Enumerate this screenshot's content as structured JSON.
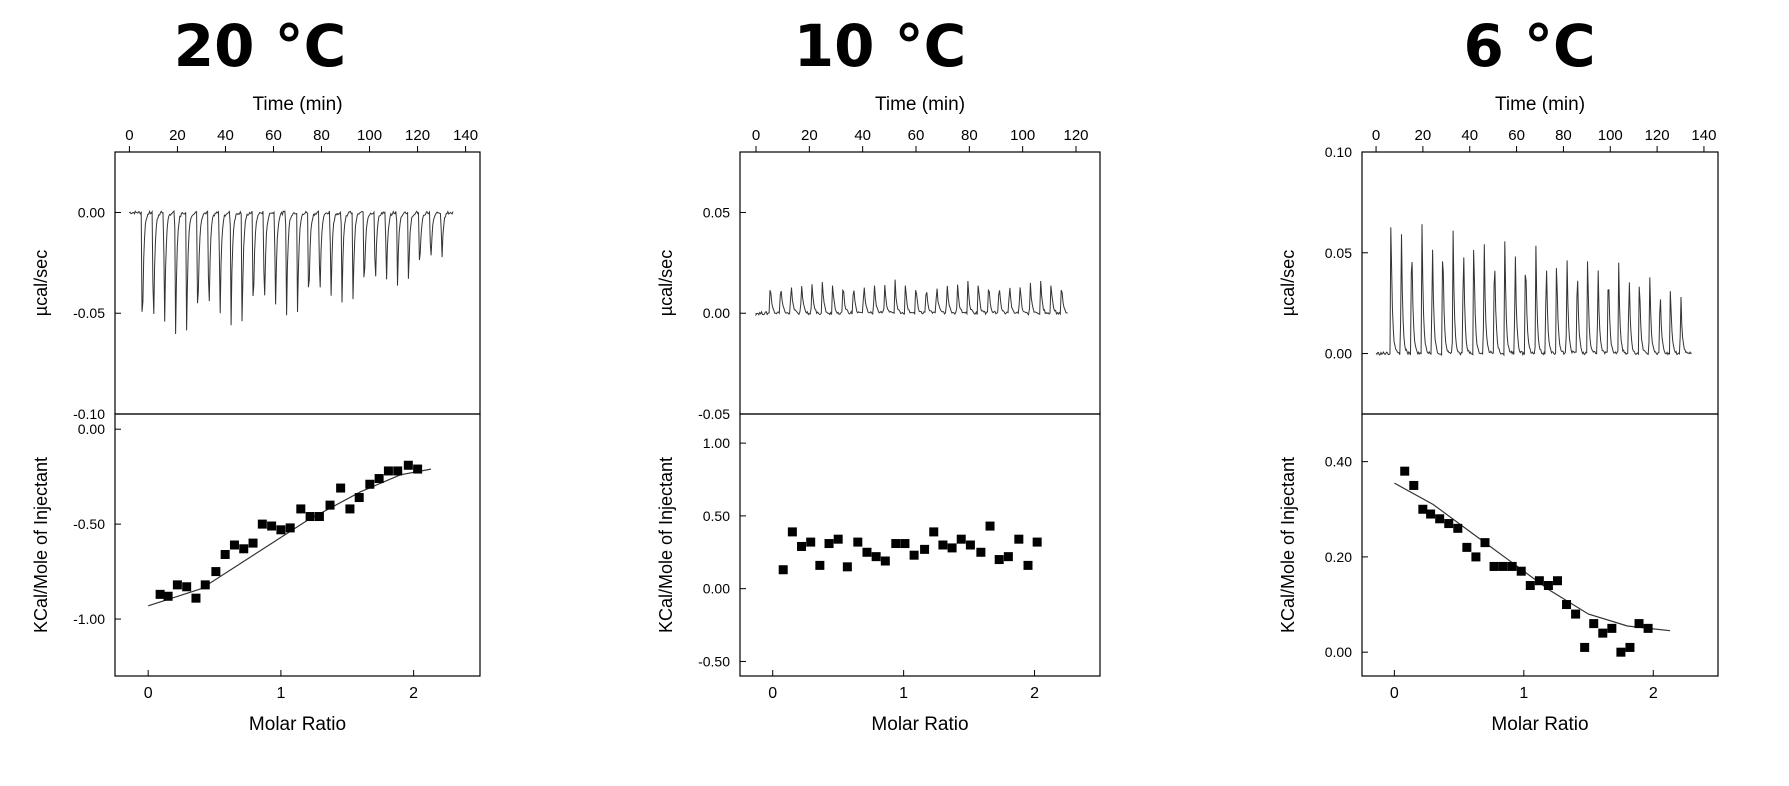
{
  "chart_data": [
    {
      "type": "scatter",
      "title": "20 °C",
      "top": {
        "xlabel": "Time (min)",
        "ylabel": "µcal/sec",
        "xlim": [
          -6,
          146
        ],
        "ylim": [
          -0.1,
          0.03
        ],
        "xticks": [
          0,
          20,
          40,
          60,
          80,
          100,
          120,
          140
        ],
        "yticks": [
          -0.1,
          -0.05,
          0.0
        ],
        "ytick_labels": [
          "-0.10",
          "-0.05",
          "0.00"
        ],
        "baseline": 0.0,
        "trace_end": 135,
        "injection_start": 5,
        "injection_interval": 4.62,
        "peaks": [
          -0.069,
          -0.069,
          -0.066,
          -0.065,
          -0.064,
          -0.063,
          -0.062,
          -0.061,
          -0.06,
          -0.059,
          -0.058,
          -0.057,
          -0.056,
          -0.055,
          -0.054,
          -0.052,
          -0.051,
          -0.05,
          -0.048,
          -0.047,
          -0.045,
          -0.043,
          -0.041,
          -0.039,
          -0.036,
          -0.033,
          -0.03,
          -0.027
        ]
      },
      "bottom": {
        "xlabel": "Molar Ratio",
        "ylabel": "KCal/Mole of Injectant",
        "xlim": [
          -0.25,
          2.5
        ],
        "ylim": [
          -1.3,
          0.08
        ],
        "xticks": [
          0,
          1,
          2
        ],
        "yticks": [
          -1.0,
          -0.5,
          0.0
        ],
        "ytick_labels": [
          "-1.00",
          "-0.50",
          "0.00"
        ],
        "points": [
          [
            0.09,
            -0.87
          ],
          [
            0.15,
            -0.88
          ],
          [
            0.22,
            -0.82
          ],
          [
            0.29,
            -0.83
          ],
          [
            0.36,
            -0.89
          ],
          [
            0.43,
            -0.82
          ],
          [
            0.51,
            -0.75
          ],
          [
            0.58,
            -0.66
          ],
          [
            0.65,
            -0.61
          ],
          [
            0.72,
            -0.63
          ],
          [
            0.79,
            -0.6
          ],
          [
            0.86,
            -0.5
          ],
          [
            0.93,
            -0.51
          ],
          [
            1.0,
            -0.53
          ],
          [
            1.07,
            -0.52
          ],
          [
            1.15,
            -0.42
          ],
          [
            1.22,
            -0.46
          ],
          [
            1.29,
            -0.46
          ],
          [
            1.37,
            -0.4
          ],
          [
            1.45,
            -0.31
          ],
          [
            1.52,
            -0.42
          ],
          [
            1.59,
            -0.36
          ],
          [
            1.67,
            -0.29
          ],
          [
            1.74,
            -0.26
          ],
          [
            1.81,
            -0.22
          ],
          [
            1.88,
            -0.22
          ],
          [
            1.96,
            -0.19
          ],
          [
            2.03,
            -0.21
          ]
        ],
        "fit": [
          [
            0.0,
            -0.93
          ],
          [
            0.4,
            -0.84
          ],
          [
            0.8,
            -0.66
          ],
          [
            1.2,
            -0.48
          ],
          [
            1.6,
            -0.33
          ],
          [
            1.9,
            -0.24
          ],
          [
            2.13,
            -0.21
          ]
        ]
      }
    },
    {
      "type": "scatter",
      "title": "10 °C",
      "top": {
        "xlabel": "Time (min)",
        "ylabel": "µcal/sec",
        "xlim": [
          -6,
          129
        ],
        "ylim": [
          -0.05,
          0.08
        ],
        "xticks": [
          0,
          20,
          40,
          60,
          80,
          100,
          120
        ],
        "yticks": [
          -0.05,
          0.0,
          0.05
        ],
        "ytick_labels": [
          "-0.05",
          "0.00",
          "0.05"
        ],
        "baseline": 0.0,
        "trace_end": 117,
        "injection_start": 5,
        "injection_interval": 3.9,
        "peaks": [
          0.016,
          0.016,
          0.016,
          0.016,
          0.016,
          0.016,
          0.016,
          0.016,
          0.016,
          0.016,
          0.016,
          0.016,
          0.016,
          0.016,
          0.016,
          0.016,
          0.016,
          0.016,
          0.016,
          0.016,
          0.016,
          0.016,
          0.016,
          0.016,
          0.016,
          0.016,
          0.016,
          0.016,
          0.016
        ]
      },
      "bottom": {
        "xlabel": "Molar Ratio",
        "ylabel": "KCal/Mole of Injectant",
        "xlim": [
          -0.25,
          2.5
        ],
        "ylim": [
          -0.6,
          1.2
        ],
        "xticks": [
          0,
          1,
          2
        ],
        "yticks": [
          -0.5,
          0.0,
          0.5,
          1.0
        ],
        "ytick_labels": [
          "-0.50",
          "0.00",
          "0.50",
          "1.00"
        ],
        "points": [
          [
            0.08,
            0.13
          ],
          [
            0.15,
            0.39
          ],
          [
            0.22,
            0.29
          ],
          [
            0.29,
            0.32
          ],
          [
            0.36,
            0.16
          ],
          [
            0.43,
            0.31
          ],
          [
            0.5,
            0.34
          ],
          [
            0.57,
            0.15
          ],
          [
            0.65,
            0.32
          ],
          [
            0.72,
            0.25
          ],
          [
            0.79,
            0.22
          ],
          [
            0.86,
            0.19
          ],
          [
            0.94,
            0.31
          ],
          [
            1.01,
            0.31
          ],
          [
            1.08,
            0.23
          ],
          [
            1.16,
            0.27
          ],
          [
            1.23,
            0.39
          ],
          [
            1.3,
            0.3
          ],
          [
            1.37,
            0.28
          ],
          [
            1.44,
            0.34
          ],
          [
            1.51,
            0.3
          ],
          [
            1.59,
            0.25
          ],
          [
            1.66,
            0.43
          ],
          [
            1.73,
            0.2
          ],
          [
            1.8,
            0.22
          ],
          [
            1.88,
            0.34
          ],
          [
            1.95,
            0.16
          ],
          [
            2.02,
            0.32
          ]
        ],
        "fit": []
      }
    },
    {
      "type": "scatter",
      "title": "6 °C",
      "top": {
        "xlabel": "Time (min)",
        "ylabel": "µcal/sec",
        "xlim": [
          -6,
          146
        ],
        "ylim": [
          -0.03,
          0.1
        ],
        "xticks": [
          0,
          20,
          40,
          60,
          80,
          100,
          120,
          140
        ],
        "yticks": [
          0.0,
          0.05,
          0.1
        ],
        "ytick_labels": [
          "0.00",
          "0.05",
          "0.10"
        ],
        "baseline": 0.0,
        "trace_end": 135,
        "injection_start": 6,
        "injection_interval": 4.42,
        "peaks": [
          0.073,
          0.068,
          0.067,
          0.066,
          0.065,
          0.064,
          0.064,
          0.063,
          0.062,
          0.061,
          0.06,
          0.059,
          0.058,
          0.057,
          0.056,
          0.055,
          0.053,
          0.052,
          0.051,
          0.05,
          0.049,
          0.048,
          0.046,
          0.045,
          0.043,
          0.041,
          0.038,
          0.035,
          0.033
        ]
      },
      "bottom": {
        "xlabel": "Molar Ratio",
        "ylabel": "KCal/Mole of Injectant",
        "xlim": [
          -0.25,
          2.5
        ],
        "ylim": [
          -0.05,
          0.5
        ],
        "xticks": [
          0,
          1,
          2
        ],
        "yticks": [
          0.0,
          0.2,
          0.4
        ],
        "ytick_labels": [
          "0.00",
          "0.20",
          "0.40"
        ],
        "points": [
          [
            0.08,
            0.38
          ],
          [
            0.15,
            0.35
          ],
          [
            0.22,
            0.3
          ],
          [
            0.28,
            0.29
          ],
          [
            0.35,
            0.28
          ],
          [
            0.42,
            0.27
          ],
          [
            0.49,
            0.26
          ],
          [
            0.56,
            0.22
          ],
          [
            0.63,
            0.2
          ],
          [
            0.7,
            0.23
          ],
          [
            0.77,
            0.18
          ],
          [
            0.84,
            0.18
          ],
          [
            0.91,
            0.18
          ],
          [
            0.98,
            0.17
          ],
          [
            1.05,
            0.14
          ],
          [
            1.12,
            0.15
          ],
          [
            1.19,
            0.14
          ],
          [
            1.26,
            0.15
          ],
          [
            1.33,
            0.1
          ],
          [
            1.4,
            0.08
          ],
          [
            1.47,
            0.01
          ],
          [
            1.54,
            0.06
          ],
          [
            1.61,
            0.04
          ],
          [
            1.68,
            0.05
          ],
          [
            1.75,
            0.0
          ],
          [
            1.82,
            0.01
          ],
          [
            1.89,
            0.06
          ],
          [
            1.96,
            0.05
          ]
        ],
        "fit": [
          [
            0.0,
            0.355
          ],
          [
            0.3,
            0.31
          ],
          [
            0.6,
            0.25
          ],
          [
            0.9,
            0.19
          ],
          [
            1.2,
            0.13
          ],
          [
            1.5,
            0.08
          ],
          [
            1.8,
            0.055
          ],
          [
            2.13,
            0.045
          ]
        ]
      }
    }
  ]
}
